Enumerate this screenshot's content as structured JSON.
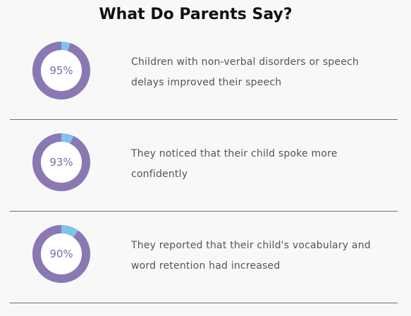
{
  "page": {
    "title": "What Do Parents Say?"
  },
  "colors": {
    "ring_main": "#8b78b3",
    "ring_accent": "#7ec3ea",
    "ring_inner": "#ffffff",
    "divider": "#6b6b6b"
  },
  "stats": [
    {
      "percent_label": "95%",
      "percent_value": 95,
      "text": "Children with non-verbal disorders or speech delays improved their speech"
    },
    {
      "percent_label": "93%",
      "percent_value": 93,
      "text": "They noticed that their child spoke more confidently"
    },
    {
      "percent_label": "90%",
      "percent_value": 90,
      "text": "They reported that their child's vocabulary and word retention had increased"
    }
  ]
}
